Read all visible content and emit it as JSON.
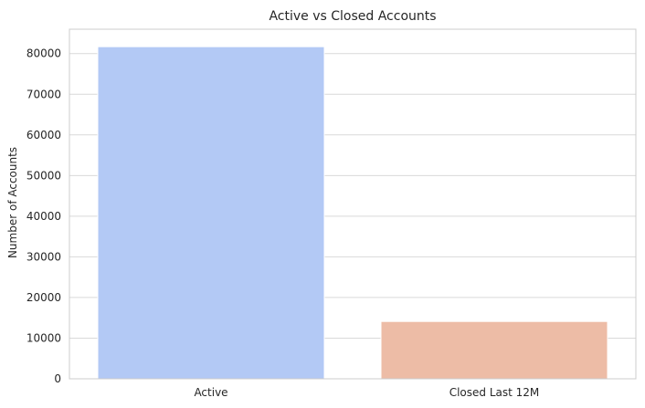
{
  "chart_data": {
    "type": "bar",
    "title": "Active vs Closed Accounts",
    "xlabel": "",
    "ylabel": "Number of Accounts",
    "categories": [
      "Active",
      "Closed Last 12M"
    ],
    "values": [
      81700,
      14100
    ],
    "ylim": [
      0,
      86000
    ],
    "yticks": [
      0,
      10000,
      20000,
      30000,
      40000,
      50000,
      60000,
      70000,
      80000
    ],
    "grid": true,
    "colors": [
      "#b3c9f5",
      "#edbca6"
    ],
    "grid_color": "#d9d9d9",
    "frame_color": "#cccccc"
  }
}
